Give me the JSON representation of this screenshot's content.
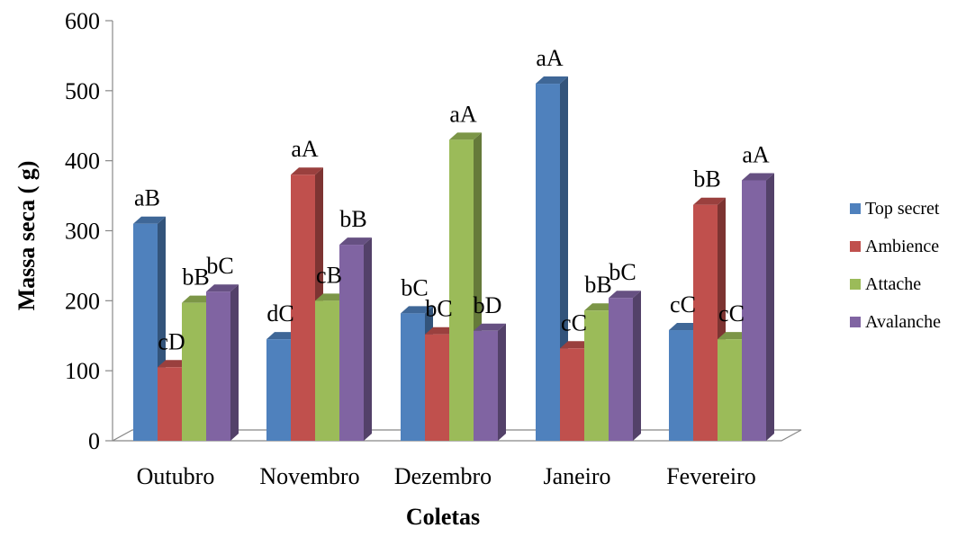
{
  "chart_data": {
    "type": "bar",
    "xlabel": "Coletas",
    "ylabel": "Massa seca ( g)",
    "ylim": [
      0,
      600
    ],
    "yticks": [
      0,
      100,
      200,
      300,
      400,
      500,
      600
    ],
    "categories": [
      "Outubro",
      "Novembro",
      "Dezembro",
      "Janeiro",
      "Fevereiro"
    ],
    "legend_position": "right",
    "series": [
      {
        "name": "Top secret",
        "color": "#4F81BD",
        "values": [
          310,
          145,
          182,
          510,
          158
        ],
        "labels": [
          "aB",
          "dC",
          "bC",
          "aA",
          "cC"
        ]
      },
      {
        "name": "Ambience",
        "color": "#C0504D",
        "values": [
          105,
          380,
          152,
          132,
          337
        ],
        "labels": [
          "cD",
          "aA",
          "bC",
          "cC",
          "bB"
        ]
      },
      {
        "name": "Attache",
        "color": "#9BBB59",
        "values": [
          197,
          200,
          430,
          186,
          145
        ],
        "labels": [
          "bB",
          "cB",
          "aA",
          "bB",
          "cC"
        ]
      },
      {
        "name": "Avalanche",
        "color": "#8064A2",
        "values": [
          213,
          280,
          157,
          204,
          372
        ],
        "labels": [
          "bC",
          "bB",
          "bD",
          "bC",
          "aA"
        ]
      }
    ]
  }
}
